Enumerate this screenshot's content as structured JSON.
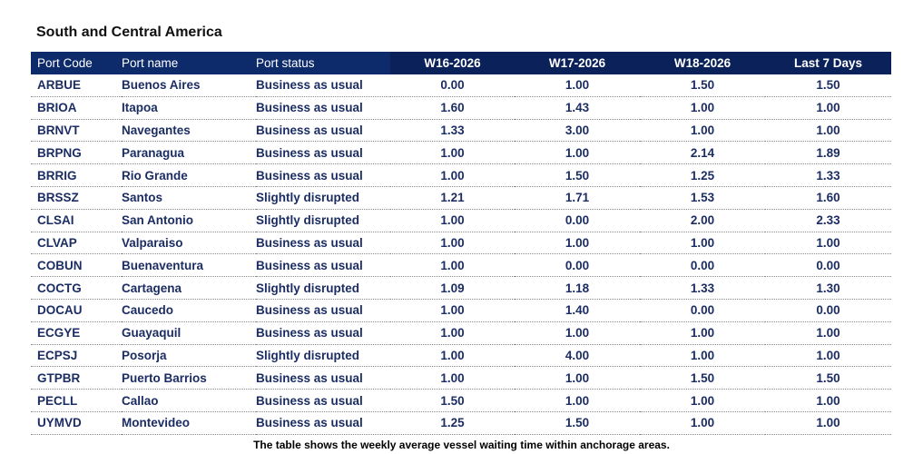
{
  "title": "South and Central America",
  "headers": {
    "port_code": "Port Code",
    "port_name": "Port name",
    "port_status": "Port status",
    "w16": "W16-2026",
    "w17": "W17-2026",
    "w18": "W18-2026",
    "last7": "Last 7 Days"
  },
  "rows": [
    {
      "code": "ARBUE",
      "name": "Buenos Aires",
      "status": "Business as usual",
      "w16": "0.00",
      "w17": "1.00",
      "w18": "1.50",
      "last7": "1.50"
    },
    {
      "code": "BRIOA",
      "name": "Itapoa",
      "status": "Business as usual",
      "w16": "1.60",
      "w17": "1.43",
      "w18": "1.00",
      "last7": "1.00"
    },
    {
      "code": "BRNVT",
      "name": "Navegantes",
      "status": "Business as usual",
      "w16": "1.33",
      "w17": "3.00",
      "w18": "1.00",
      "last7": "1.00"
    },
    {
      "code": "BRPNG",
      "name": "Paranagua",
      "status": "Business as usual",
      "w16": "1.00",
      "w17": "1.00",
      "w18": "2.14",
      "last7": "1.89"
    },
    {
      "code": "BRRIG",
      "name": "Rio Grande",
      "status": "Business as usual",
      "w16": "1.00",
      "w17": "1.50",
      "w18": "1.25",
      "last7": "1.33"
    },
    {
      "code": "BRSSZ",
      "name": "Santos",
      "status": "Slightly disrupted",
      "w16": "1.21",
      "w17": "1.71",
      "w18": "1.53",
      "last7": "1.60"
    },
    {
      "code": "CLSAI",
      "name": "San Antonio",
      "status": "Slightly disrupted",
      "w16": "1.00",
      "w17": "0.00",
      "w18": "2.00",
      "last7": "2.33"
    },
    {
      "code": "CLVAP",
      "name": "Valparaiso",
      "status": "Business as usual",
      "w16": "1.00",
      "w17": "1.00",
      "w18": "1.00",
      "last7": "1.00"
    },
    {
      "code": "COBUN",
      "name": "Buenaventura",
      "status": "Business as usual",
      "w16": "1.00",
      "w17": "0.00",
      "w18": "0.00",
      "last7": "0.00"
    },
    {
      "code": "COCTG",
      "name": "Cartagena",
      "status": "Slightly disrupted",
      "w16": "1.09",
      "w17": "1.18",
      "w18": "1.33",
      "last7": "1.30"
    },
    {
      "code": "DOCAU",
      "name": "Caucedo",
      "status": "Business as usual",
      "w16": "1.00",
      "w17": "1.40",
      "w18": "0.00",
      "last7": "0.00"
    },
    {
      "code": "ECGYE",
      "name": "Guayaquil",
      "status": "Business as usual",
      "w16": "1.00",
      "w17": "1.00",
      "w18": "1.00",
      "last7": "1.00"
    },
    {
      "code": "ECPSJ",
      "name": "Posorja",
      "status": "Slightly disrupted",
      "w16": "1.00",
      "w17": "4.00",
      "w18": "1.00",
      "last7": "1.00"
    },
    {
      "code": "GTPBR",
      "name": "Puerto Barrios",
      "status": "Business as usual",
      "w16": "1.00",
      "w17": "1.00",
      "w18": "1.50",
      "last7": "1.50"
    },
    {
      "code": "PECLL",
      "name": "Callao",
      "status": "Business as usual",
      "w16": "1.50",
      "w17": "1.00",
      "w18": "1.00",
      "last7": "1.00"
    },
    {
      "code": "UYMVD",
      "name": "Montevideo",
      "status": "Business as usual",
      "w16": "1.25",
      "w17": "1.50",
      "w18": "1.00",
      "last7": "1.00"
    }
  ],
  "caption": "The table shows the weekly average vessel waiting time within anchorage areas.",
  "colors": {
    "header_bg": "#0d2a6b",
    "header_bg_numeric": "#0a2159",
    "cell_text": "#1b2d63"
  }
}
